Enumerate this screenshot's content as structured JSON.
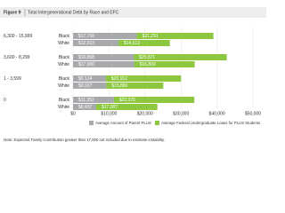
{
  "chart_data": {
    "type": "bar",
    "orientation": "horizontal",
    "stacked": true,
    "figure_label": "Figure 9",
    "title": "Total Intergenerational Debt by Race and EFC",
    "groups": [
      "6,300 - 15,999",
      "3,600 - 8,299",
      "1 - 3,599",
      "0"
    ],
    "categories": [
      "Black",
      "White",
      "Black",
      "White",
      "Black",
      "White",
      "Black",
      "White"
    ],
    "series": [
      {
        "name": "Average Amount of Parent PLUS",
        "color": "#a7a9ac",
        "values": [
          17716,
          12613,
          16858,
          17000,
          9124,
          9227,
          11352,
          6437
        ],
        "value_labels": [
          "$17,716",
          "$12,613",
          "$16,858",
          "$17,000",
          "$9,124",
          "$9,227",
          "$11,352",
          "$6,437"
        ]
      },
      {
        "name": "Average Federal Undergraduate Loans for PLUS Students",
        "color": "#8dc63f",
        "values": [
          21291,
          14313,
          25871,
          16800,
          20912,
          15860,
          22370,
          17007
        ],
        "value_labels": [
          "$21,291",
          "$14,313",
          "$25,871",
          "$16,800",
          "$20,912",
          "$15,860",
          "$22,370",
          "$17,007"
        ]
      }
    ],
    "xlim": [
      0,
      50000
    ],
    "xticks": [
      {
        "value": 0,
        "label": "$0"
      },
      {
        "value": 10000,
        "label": "$10,000"
      },
      {
        "value": 20000,
        "label": "$20,000"
      },
      {
        "value": 30000,
        "label": "$30,000"
      },
      {
        "value": 40000,
        "label": "$40,000"
      },
      {
        "value": 50000,
        "label": "$50,000"
      }
    ],
    "grid": true,
    "note": "Note: Expected Family Contribution greater than 17,000 not included due to estimate instability."
  }
}
